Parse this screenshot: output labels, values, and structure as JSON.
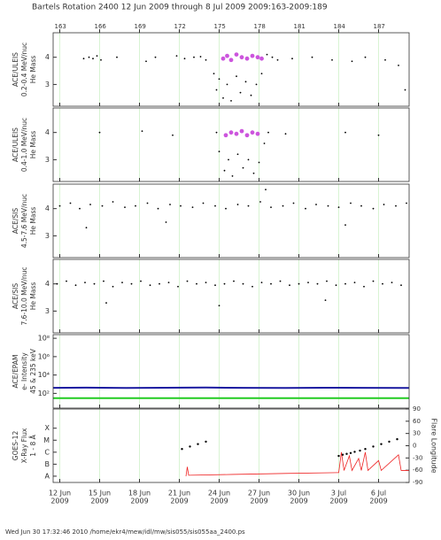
{
  "chart_data": {
    "title": "Bartels Rotation 2400    12 Jun 2009 through 8 Jul 2009    2009:163-2009:189",
    "xlim": [
      162.5,
      189.3
    ],
    "top_xticks": [
      163,
      166,
      169,
      172,
      175,
      178,
      181,
      184,
      187
    ],
    "xticks": [
      {
        "value": 163,
        "label": "12 Jun"
      },
      {
        "value": 166,
        "label": "15 Jun"
      },
      {
        "value": 169,
        "label": "18 Jun"
      },
      {
        "value": 172,
        "label": "21 Jun"
      },
      {
        "value": 175,
        "label": "24 Jun"
      },
      {
        "value": 178,
        "label": "27 Jun"
      },
      {
        "value": 181,
        "label": "30 Jun"
      },
      {
        "value": 184,
        "label": "3 Jul"
      },
      {
        "value": 187,
        "label": "6 Jul"
      }
    ],
    "year_label": "2009",
    "panels": [
      {
        "type": "scatter",
        "ylabel": [
          "ACE/ULEIS",
          "0.2-0.4 MeV/nuc",
          "He Mass"
        ],
        "ylim": [
          2.2,
          4.9
        ],
        "yticks": [
          3,
          4
        ],
        "series": [
          {
            "color": "#000000",
            "x": [
              164.8,
              165.2,
              165.5,
              165.8,
              166.1,
              167.3,
              169.5,
              170.2,
              171.8,
              172.4,
              173.1,
              173.6,
              174.0,
              174.6,
              174.8,
              175.0,
              175.3,
              175.6,
              175.9,
              176.3,
              176.6,
              177.0,
              177.4,
              177.8,
              178.2,
              178.6,
              179.0,
              179.4,
              180.5,
              182.0,
              183.5,
              185.0,
              186.0,
              187.5,
              188.5,
              189.0
            ],
            "values": [
              3.95,
              4.0,
              3.95,
              4.05,
              3.9,
              4.0,
              3.85,
              4.0,
              4.05,
              3.95,
              4.0,
              4.02,
              3.9,
              3.4,
              2.8,
              3.2,
              2.5,
              3.0,
              2.4,
              3.3,
              2.7,
              3.1,
              2.6,
              3.0,
              3.4,
              4.1,
              4.0,
              3.9,
              3.95,
              4.0,
              3.9,
              3.85,
              4.0,
              3.9,
              3.7,
              2.8
            ]
          },
          {
            "color": "#cc55dd",
            "x": [
              175.3,
              175.6,
              175.9,
              176.3,
              176.7,
              177.1,
              177.5,
              177.9,
              178.2
            ],
            "values": [
              3.95,
              4.05,
              3.9,
              4.1,
              4.0,
              3.95,
              4.05,
              4.0,
              3.95
            ]
          }
        ]
      },
      {
        "type": "scatter",
        "ylabel": [
          "ACE/ULEIS",
          "0.4-1.0 MeV/nuc",
          "He Mass"
        ],
        "ylim": [
          2.2,
          4.9
        ],
        "yticks": [
          3,
          4
        ],
        "series": [
          {
            "color": "#000000",
            "x": [
              166.0,
              169.2,
              171.5,
              174.8,
              175.0,
              175.4,
              175.7,
              176.0,
              176.4,
              176.8,
              177.2,
              177.6,
              178.0,
              178.4,
              178.7,
              180.0,
              184.5,
              187.0
            ],
            "values": [
              4.0,
              4.05,
              3.9,
              4.0,
              3.3,
              2.6,
              3.0,
              2.4,
              3.2,
              2.7,
              3.0,
              2.5,
              2.9,
              3.6,
              4.0,
              3.95,
              4.0,
              3.9
            ]
          },
          {
            "color": "#cc55dd",
            "x": [
              175.5,
              175.9,
              176.3,
              176.7,
              177.1,
              177.5,
              177.9
            ],
            "values": [
              3.9,
              4.0,
              3.95,
              4.05,
              3.9,
              4.0,
              3.95
            ]
          }
        ]
      },
      {
        "type": "scatter",
        "ylabel": [
          "ACE/SIS",
          "4.5-7.6 MeV/nuc",
          "He Mass"
        ],
        "ylim": [
          2.2,
          4.9
        ],
        "yticks": [
          3,
          4
        ],
        "series": [
          {
            "color": "#000000",
            "x": [
              163.0,
              163.8,
              164.5,
              165.3,
              166.2,
              167.0,
              167.9,
              168.7,
              169.6,
              170.4,
              171.3,
              172.1,
              173.0,
              173.8,
              174.7,
              175.5,
              176.4,
              177.2,
              178.1,
              178.9,
              179.8,
              180.6,
              181.5,
              182.3,
              183.2,
              184.0,
              184.9,
              185.7,
              186.6,
              187.4,
              188.3,
              189.1,
              165.0,
              171.0,
              178.5,
              184.5
            ],
            "values": [
              4.1,
              4.2,
              4.0,
              4.15,
              4.1,
              4.25,
              4.05,
              4.1,
              4.2,
              4.0,
              4.15,
              4.1,
              4.05,
              4.2,
              4.1,
              4.0,
              4.15,
              4.1,
              4.25,
              4.05,
              4.1,
              4.2,
              4.0,
              4.15,
              4.1,
              4.05,
              4.2,
              4.1,
              4.0,
              4.15,
              4.1,
              4.2,
              3.3,
              3.5,
              4.7,
              3.4
            ]
          }
        ]
      },
      {
        "type": "scatter",
        "ylabel": [
          "ACE/SIS",
          "7.6-10.0 MeV/nuc",
          "He Mass"
        ],
        "ylim": [
          2.2,
          4.9
        ],
        "yticks": [
          3,
          4
        ],
        "series": [
          {
            "color": "#000000",
            "x": [
              162.8,
              163.5,
              164.2,
              164.9,
              165.6,
              166.3,
              167.0,
              167.7,
              168.4,
              169.1,
              169.8,
              170.5,
              171.2,
              171.9,
              172.6,
              173.3,
              174.0,
              174.7,
              175.4,
              176.1,
              176.8,
              177.5,
              178.2,
              178.9,
              179.6,
              180.3,
              181.0,
              181.7,
              182.4,
              183.1,
              183.8,
              184.5,
              185.2,
              185.9,
              186.6,
              187.3,
              188.0,
              188.7,
              166.5,
              175.0,
              183.0
            ],
            "values": [
              4.0,
              4.1,
              3.95,
              4.05,
              4.0,
              4.1,
              3.9,
              4.05,
              4.0,
              4.1,
              3.95,
              4.0,
              4.05,
              3.9,
              4.1,
              4.0,
              4.05,
              3.95,
              4.0,
              4.1,
              4.0,
              3.9,
              4.05,
              4.0,
              4.1,
              3.95,
              4.0,
              4.05,
              4.0,
              4.1,
              3.95,
              4.0,
              4.05,
              3.9,
              4.1,
              4.0,
              4.05,
              3.95,
              3.3,
              3.2,
              3.4
            ]
          }
        ]
      },
      {
        "type": "line",
        "log": true,
        "ylabel": [
          "ACE/EPAM",
          "e- Intensity",
          "45 & 235 keV"
        ],
        "ylim": [
          2.5,
          250000000
        ],
        "yticks": [
          {
            "value": 100,
            "label": "10²"
          },
          {
            "value": 10000,
            "label": "10⁴"
          },
          {
            "value": 1000000,
            "label": "10⁶"
          },
          {
            "value": 100000000,
            "label": "10⁸"
          }
        ],
        "series": [
          {
            "color": "#1a1aa0",
            "x": [
              162.5,
              165,
              168,
              171,
              174,
              177,
              180,
              183,
              186,
              189.3
            ],
            "values": [
              400,
              420,
              390,
              410,
              430,
              400,
              390,
              410,
              400,
              390
            ]
          },
          {
            "color": "#22cc22",
            "x": [
              162.5,
              189.3
            ],
            "values": [
              30,
              30
            ]
          }
        ]
      },
      {
        "type": "line",
        "log": true,
        "ylabel": [
          "GOES-12",
          "X-Ray Flux",
          "1 - 8 Å"
        ],
        "y2label": "Flare Longitude",
        "ylim": [
          3e-09,
          0.004
        ],
        "yticks": [
          {
            "value": 1e-08,
            "label": "A"
          },
          {
            "value": 1e-07,
            "label": "B"
          },
          {
            "value": 1e-06,
            "label": "C"
          },
          {
            "value": 1e-05,
            "label": "M"
          },
          {
            "value": 0.0001,
            "label": "X"
          }
        ],
        "y2lim": [
          -90,
          90
        ],
        "y2ticks": [
          -90,
          -60,
          -30,
          0,
          30,
          60,
          90
        ],
        "series": [
          {
            "color": "#ee2222",
            "x": [
              172.5,
              172.6,
              172.7,
              176,
              180,
              184.0,
              184.2,
              184.4,
              184.8,
              185.0,
              185.5,
              185.7,
              186.0,
              186.2,
              187.0,
              187.2,
              188.5,
              188.7,
              189.3
            ],
            "values": [
              1e-08,
              6e-08,
              1.2e-08,
              1.4e-08,
              1.7e-08,
              2e-08,
              1e-06,
              3e-08,
              5e-07,
              3e-08,
              3e-07,
              3e-08,
              1e-06,
              3e-08,
              2e-07,
              3e-08,
              6e-07,
              3e-08,
              3e-08
            ]
          },
          {
            "color": "#000000",
            "axis": "y2",
            "x": [
              172.2,
              172.8,
              173.4,
              174.0,
              184.0,
              184.3,
              184.6,
              184.9,
              185.2,
              185.6,
              186.0,
              186.6,
              187.2,
              187.8,
              188.4
            ],
            "values": [
              -8,
              -2,
              4,
              10,
              -25,
              -22,
              -20,
              -18,
              -15,
              -12,
              -8,
              -2,
              4,
              10,
              16
            ]
          }
        ]
      }
    ]
  },
  "footer": "Wed Jun 30 17:32:46 2010   /home/ekr4/mew/idl/mw/sis055/sis055aa_2400.ps"
}
